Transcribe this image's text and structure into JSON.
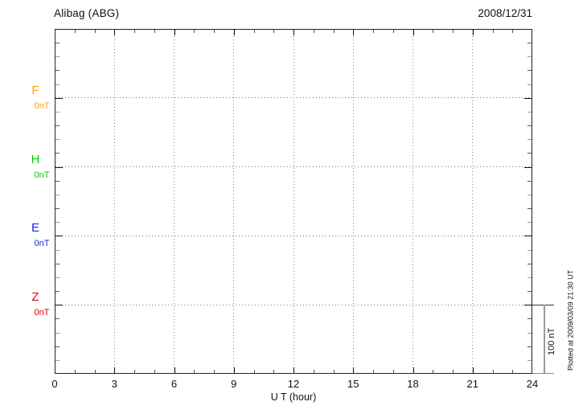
{
  "header": {
    "station": "Alibag (ABG)",
    "date": "2008/12/31"
  },
  "axes": {
    "x_title": "U T (hour)",
    "x_ticks": [
      "0",
      "3",
      "6",
      "9",
      "12",
      "15",
      "18",
      "21",
      "24"
    ],
    "x_tick_values": [
      0,
      3,
      6,
      9,
      12,
      15,
      18,
      21,
      24
    ]
  },
  "channels": [
    {
      "name": "F",
      "value_label": "0nT",
      "color": "#FFA500"
    },
    {
      "name": "H",
      "value_label": "0nT",
      "color": "#00CC00"
    },
    {
      "name": "E",
      "value_label": "0nT",
      "color": "#2222DD"
    },
    {
      "name": "Z",
      "value_label": "0nT",
      "color": "#EE0000"
    }
  ],
  "scale_bar": {
    "label": "100 nT"
  },
  "footer": {
    "plotted_at": "Plotted at 2009/03/09 21:30 UT"
  },
  "chart_data": {
    "type": "line",
    "title": "Alibag (ABG)",
    "date": "2008/12/31",
    "xlabel": "U T (hour)",
    "xlim": [
      0,
      24
    ],
    "x_tick_values": [
      0,
      3,
      6,
      9,
      12,
      15,
      18,
      21,
      24
    ],
    "x_minor_tick_every_hours": 1,
    "x_major_tick_every_hours": 3,
    "grid": true,
    "legend_position": "left-margin",
    "y_scale": {
      "scale_bar_nT": 100,
      "minor_tick_nT": 20,
      "channel_baseline_offset_nT": 100
    },
    "series": [
      {
        "name": "F",
        "color": "#FFA500",
        "baseline_nT": 0,
        "baseline_label": "0nT",
        "x": [],
        "values": []
      },
      {
        "name": "H",
        "color": "#00CC00",
        "baseline_nT": 0,
        "baseline_label": "0nT",
        "x": [],
        "values": []
      },
      {
        "name": "E",
        "color": "#2222DD",
        "baseline_nT": 0,
        "baseline_label": "0nT",
        "x": [],
        "values": []
      },
      {
        "name": "Z",
        "color": "#EE0000",
        "baseline_nT": 0,
        "baseline_label": "0nT",
        "x": [],
        "values": []
      }
    ],
    "note": "Empty magnetogram grid: no data traces are plotted for any channel on this day."
  }
}
